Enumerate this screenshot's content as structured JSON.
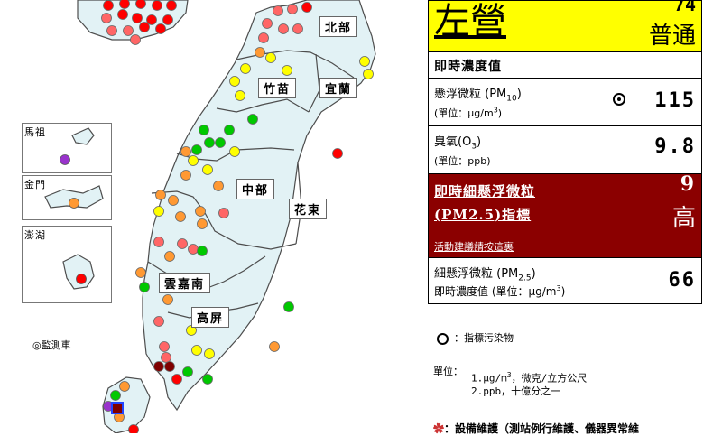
{
  "site": {
    "name": "左營",
    "aqi": "74",
    "status": "普通"
  },
  "realtime_title": "即時濃度值",
  "pm10": {
    "label": "懸浮微粒 (PM",
    "sub": "10",
    "label_end": ")",
    "unit_prefix": "(單位：μg/m",
    "unit_sup": "3",
    "unit_end": ")",
    "value": "115"
  },
  "o3": {
    "label": "臭氧(O",
    "sub": "3",
    "label_end": ")",
    "unit": "(單位：ppb)",
    "value": "9.8"
  },
  "pm25_index": {
    "line1": "即時細懸浮微粒",
    "line2": "(PM2.5)指標",
    "value": "9",
    "level": "高",
    "link": "活動建議請按這裏"
  },
  "pm25": {
    "label": "細懸浮微粒 (PM",
    "sub": "2.5",
    "label_end": ")",
    "unit_prefix": "即時濃度值 (單位：μg/m",
    "unit_sup": "3",
    "unit_end": ")",
    "value": "66"
  },
  "legend": {
    "indicator": "：指標污染物",
    "unit_head": "單位：",
    "unit_1a": "1.μg/m",
    "unit_1sup": "3",
    "unit_1b": "，微克/立方公尺",
    "unit_2": "2.ppb，十億分之一",
    "maint": "設備維護（測站例行維護、儀器異常維",
    "monitor_car": "監測車"
  },
  "regions": [
    "北部",
    "竹苗",
    "宜蘭",
    "中部",
    "花東",
    "雲嘉南",
    "高屏"
  ],
  "islands": [
    "馬祖",
    "金門",
    "澎湖"
  ],
  "colors": {
    "good": "#00c800",
    "moderate": "#ffff00",
    "sensitive": "#ff9933",
    "unhealthy": "#ff0000",
    "very": "#9900cc",
    "selected": "#800000",
    "header_bg": "#ffff00",
    "pm25_bg": "#8b0000"
  },
  "stations": [
    {
      "c": "#ff0000"
    },
    {
      "c": "#ff0000"
    },
    {
      "c": "#ff0000"
    },
    {
      "c": "#ff0000"
    },
    {
      "c": "#ff0000"
    },
    {
      "c": "#ff6666"
    },
    {
      "c": "#ff0000"
    },
    {
      "c": "#ff0000"
    },
    {
      "c": "#ff0000"
    },
    {
      "c": "#ff0000"
    },
    {
      "c": "#ff6666"
    },
    {
      "c": "#ff6666"
    },
    {
      "c": "#ff0000"
    },
    {
      "c": "#ff0000"
    },
    {
      "c": "#ff6666"
    },
    {
      "c": "#ff6666"
    },
    {
      "c": "#ff6666"
    },
    {
      "c": "#ff0000"
    },
    {
      "c": "#ff6666"
    },
    {
      "c": "#ff6666"
    },
    {
      "c": "#ff6666"
    },
    {
      "c": "#ff6666"
    },
    {
      "c": "#ff9933"
    },
    {
      "c": "#ffff00"
    },
    {
      "c": "#ffff00"
    },
    {
      "c": "#ffff00"
    },
    {
      "c": "#ffff00"
    },
    {
      "c": "#ffff00"
    },
    {
      "c": "#ffff00"
    },
    {
      "c": "#ffff00"
    },
    {
      "c": "#00c800"
    },
    {
      "c": "#00c800"
    },
    {
      "c": "#00c800"
    },
    {
      "c": "#00c800"
    },
    {
      "c": "#00c800"
    },
    {
      "c": "#00c800"
    },
    {
      "c": "#ffff00"
    },
    {
      "c": "#ff9933"
    },
    {
      "c": "#ffff00"
    },
    {
      "c": "#ff9933"
    },
    {
      "c": "#ffff00"
    },
    {
      "c": "#ff9933"
    },
    {
      "c": "#ff9933"
    },
    {
      "c": "#ff9933"
    },
    {
      "c": "#ffff00"
    },
    {
      "c": "#ff9933"
    },
    {
      "c": "#ff9933"
    },
    {
      "c": "#ff9933"
    },
    {
      "c": "#ff6666"
    },
    {
      "c": "#ff6666"
    },
    {
      "c": "#ff6666"
    },
    {
      "c": "#ff6666"
    },
    {
      "c": "#ff9933"
    },
    {
      "c": "#ff9933"
    },
    {
      "c": "#00c800"
    },
    {
      "c": "#00c800"
    },
    {
      "c": "#ff9933"
    },
    {
      "c": "#ff6666"
    },
    {
      "c": "#ff6666"
    },
    {
      "c": "#ff6666"
    },
    {
      "c": "#800000"
    },
    {
      "c": "#800000"
    },
    {
      "c": "#ff0000"
    },
    {
      "c": "#ffff00"
    },
    {
      "c": "#ffff00"
    },
    {
      "c": "#ffff00"
    },
    {
      "c": "#00c800"
    },
    {
      "c": "#00c800"
    },
    {
      "c": "#00c800"
    },
    {
      "c": "#ff9933"
    },
    {
      "c": "#ff9933"
    },
    {
      "c": "#00c800"
    },
    {
      "c": "#9933cc"
    },
    {
      "c": "#ff9933"
    },
    {
      "c": "#ff0000"
    },
    {
      "c": "#ff0000"
    }
  ]
}
